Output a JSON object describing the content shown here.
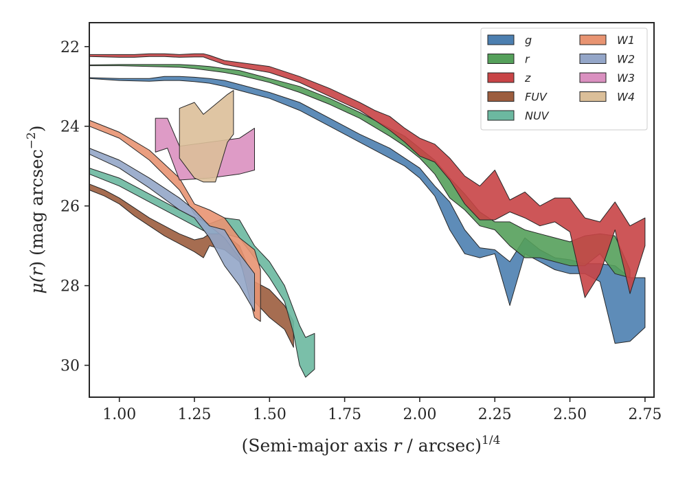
{
  "chart_data": {
    "type": "area",
    "xlabel": "(Semi-major axis r / arcsec)^1/4",
    "xlabel_parts": {
      "prefix": "(Semi-major axis ",
      "var": "r",
      "mid": " / arcsec)",
      "sup": "1/4"
    },
    "ylabel": "μ(r) (mag arcsec^-2)",
    "ylabel_parts": {
      "mu": "μ(",
      "var": "r",
      "mid": ") (mag arcsec",
      "sup": "−2",
      "end": ")"
    },
    "xlim": [
      0.9,
      2.78
    ],
    "ylim": [
      30.8,
      21.4
    ],
    "y_inverted": true,
    "grid": false,
    "legend_position": "top-right",
    "legend_columns": 2,
    "xticks": [
      1.0,
      1.25,
      1.5,
      1.75,
      2.0,
      2.25,
      2.5,
      2.75
    ],
    "xtick_labels": [
      "1.00",
      "1.25",
      "1.50",
      "1.75",
      "2.00",
      "2.25",
      "2.50",
      "2.75"
    ],
    "yticks": [
      22,
      24,
      26,
      28,
      30
    ],
    "ytick_labels": [
      "22",
      "24",
      "26",
      "28",
      "30"
    ],
    "series": [
      {
        "name": "g",
        "color": "#4c7fb0",
        "x": [
          0.9,
          1.0,
          1.1,
          1.15,
          1.2,
          1.25,
          1.3,
          1.35,
          1.4,
          1.5,
          1.6,
          1.7,
          1.8,
          1.9,
          1.95,
          2.0,
          2.05,
          2.1,
          2.15,
          2.2,
          2.25,
          2.3,
          2.35,
          2.4,
          2.45,
          2.5,
          2.55,
          2.6,
          2.65,
          2.7,
          2.75
        ],
        "lower": [
          22.78,
          22.8,
          22.8,
          22.75,
          22.75,
          22.77,
          22.8,
          22.85,
          22.95,
          23.15,
          23.4,
          23.8,
          24.2,
          24.55,
          24.8,
          25.05,
          25.5,
          25.9,
          26.6,
          27.05,
          27.1,
          27.4,
          26.8,
          27.1,
          27.3,
          27.35,
          27.45,
          27.45,
          27.5,
          27.8,
          27.8
        ],
        "upper": [
          22.8,
          22.85,
          22.87,
          22.85,
          22.85,
          22.88,
          22.92,
          23.0,
          23.1,
          23.3,
          23.6,
          24.0,
          24.4,
          24.8,
          25.0,
          25.3,
          25.75,
          26.6,
          27.2,
          27.3,
          27.2,
          28.5,
          27.2,
          27.4,
          27.6,
          27.7,
          27.7,
          27.9,
          29.45,
          29.4,
          29.05
        ]
      },
      {
        "name": "r",
        "color": "#55a05b",
        "x": [
          0.9,
          1.0,
          1.1,
          1.2,
          1.25,
          1.3,
          1.35,
          1.4,
          1.5,
          1.6,
          1.7,
          1.8,
          1.9,
          1.95,
          2.0,
          2.05,
          2.1,
          2.15,
          2.2,
          2.25,
          2.3,
          2.35,
          2.4,
          2.45,
          2.5,
          2.55,
          2.6,
          2.65,
          2.7
        ],
        "lower": [
          22.46,
          22.45,
          22.45,
          22.45,
          22.47,
          22.5,
          22.55,
          22.6,
          22.8,
          23.0,
          23.3,
          23.65,
          24.05,
          24.25,
          24.55,
          24.85,
          25.3,
          25.7,
          26.15,
          26.4,
          26.4,
          26.6,
          26.7,
          26.8,
          26.9,
          26.75,
          26.7,
          26.75,
          27.6
        ],
        "upper": [
          22.48,
          22.48,
          22.5,
          22.52,
          22.55,
          22.6,
          22.65,
          22.72,
          22.9,
          23.15,
          23.45,
          23.8,
          24.25,
          24.5,
          24.8,
          25.2,
          25.8,
          26.1,
          26.5,
          26.6,
          27.0,
          27.3,
          27.3,
          27.4,
          27.5,
          27.5,
          27.2,
          27.7,
          27.8
        ]
      },
      {
        "name": "z",
        "color": "#c84446",
        "x": [
          0.9,
          1.0,
          1.05,
          1.1,
          1.15,
          1.2,
          1.25,
          1.28,
          1.3,
          1.35,
          1.4,
          1.5,
          1.6,
          1.7,
          1.8,
          1.85,
          1.9,
          1.95,
          2.0,
          2.05,
          2.1,
          2.15,
          2.2,
          2.25,
          2.3,
          2.35,
          2.4,
          2.45,
          2.5,
          2.55,
          2.6,
          2.65,
          2.7,
          2.75
        ],
        "lower": [
          22.2,
          22.2,
          22.2,
          22.18,
          22.18,
          22.2,
          22.18,
          22.18,
          22.22,
          22.35,
          22.4,
          22.5,
          22.75,
          23.05,
          23.4,
          23.6,
          23.75,
          24.05,
          24.3,
          24.45,
          24.8,
          25.25,
          25.5,
          25.1,
          25.85,
          25.65,
          26.0,
          25.8,
          25.8,
          26.3,
          26.4,
          25.9,
          26.5,
          26.3
        ],
        "upper": [
          22.25,
          22.27,
          22.27,
          22.25,
          22.25,
          22.27,
          22.26,
          22.26,
          22.32,
          22.45,
          22.52,
          22.65,
          22.9,
          23.25,
          23.6,
          23.85,
          24.1,
          24.4,
          24.75,
          24.9,
          25.35,
          25.95,
          26.35,
          26.35,
          26.15,
          26.3,
          26.5,
          26.4,
          26.65,
          28.3,
          27.7,
          26.6,
          28.2,
          27.0
        ]
      },
      {
        "name": "FUV",
        "color": "#9c5d3e",
        "x": [
          0.9,
          0.95,
          1.0,
          1.05,
          1.1,
          1.15,
          1.2,
          1.25,
          1.28,
          1.3,
          1.35,
          1.4,
          1.45,
          1.5,
          1.55,
          1.58
        ],
        "lower": [
          25.45,
          25.6,
          25.8,
          26.05,
          26.3,
          26.5,
          26.7,
          26.85,
          26.8,
          26.7,
          26.7,
          27.0,
          27.9,
          28.1,
          28.5,
          28.9
        ],
        "upper": [
          25.6,
          25.75,
          25.95,
          26.25,
          26.5,
          26.75,
          26.95,
          27.15,
          27.3,
          27.0,
          27.1,
          27.4,
          28.4,
          28.8,
          29.1,
          29.55
        ]
      },
      {
        "name": "NUV",
        "color": "#6cb8a0",
        "x": [
          0.9,
          1.0,
          1.1,
          1.2,
          1.3,
          1.35,
          1.4,
          1.45,
          1.5,
          1.55,
          1.58,
          1.6,
          1.62,
          1.65
        ],
        "lower": [
          25.05,
          25.3,
          25.7,
          26.1,
          26.45,
          26.3,
          26.35,
          27.0,
          27.4,
          28.0,
          28.6,
          29.0,
          29.3,
          29.2
        ],
        "upper": [
          25.2,
          25.5,
          25.9,
          26.3,
          26.7,
          26.7,
          26.8,
          27.3,
          27.8,
          28.4,
          29.2,
          30.0,
          30.3,
          30.1
        ]
      },
      {
        "name": "W1",
        "color": "#e89472",
        "x": [
          0.9,
          1.0,
          1.1,
          1.2,
          1.25,
          1.3,
          1.35,
          1.4,
          1.45,
          1.47
        ],
        "lower": [
          23.85,
          24.15,
          24.6,
          25.3,
          25.95,
          26.1,
          26.3,
          26.8,
          27.1,
          27.6
        ],
        "upper": [
          24.0,
          24.3,
          24.85,
          25.6,
          26.2,
          26.5,
          26.8,
          27.3,
          28.8,
          28.9
        ]
      },
      {
        "name": "W2",
        "color": "#94a6c8",
        "x": [
          0.9,
          1.0,
          1.1,
          1.2,
          1.25,
          1.3,
          1.35,
          1.4,
          1.45
        ],
        "lower": [
          24.55,
          24.85,
          25.3,
          25.8,
          26.1,
          26.5,
          26.6,
          27.2,
          27.7
        ],
        "upper": [
          24.7,
          25.05,
          25.55,
          26.1,
          26.3,
          26.8,
          27.5,
          28.0,
          28.65
        ]
      },
      {
        "name": "W3",
        "color": "#da90c0",
        "x": [
          1.12,
          1.16,
          1.2,
          1.3,
          1.4,
          1.45
        ],
        "lower": [
          23.8,
          23.8,
          24.5,
          24.4,
          24.3,
          24.05
        ],
        "upper": [
          24.65,
          24.55,
          25.35,
          25.3,
          25.2,
          25.1
        ]
      },
      {
        "name": "W4",
        "color": "#dbbf99",
        "x": [
          1.2,
          1.25,
          1.28,
          1.32,
          1.36,
          1.38
        ],
        "lower": [
          23.55,
          23.4,
          23.7,
          23.45,
          23.2,
          23.1
        ],
        "upper": [
          24.8,
          25.3,
          25.4,
          25.4,
          24.4,
          24.2
        ]
      }
    ]
  }
}
